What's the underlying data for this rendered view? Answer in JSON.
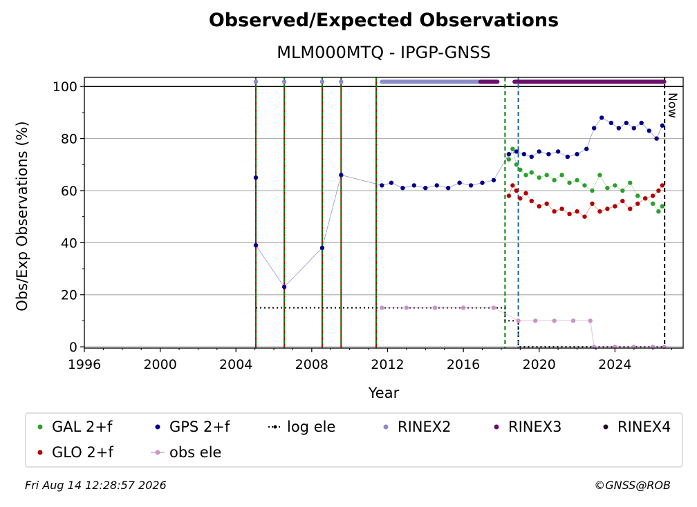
{
  "chart_data": {
    "type": "scatter",
    "title": "Observed/Expected Observations",
    "subtitle": "MLM000MTQ - IPGP-GNSS",
    "xlabel": "Year",
    "ylabel": "Obs/Exp Observations (%)",
    "xlim": [
      1996,
      2027.6
    ],
    "ylim": [
      -0.5,
      103.5
    ],
    "x_ticks": [
      1996,
      2000,
      2004,
      2008,
      2012,
      2016,
      2020,
      2024
    ],
    "y_ticks": [
      0,
      20,
      40,
      60,
      80,
      100
    ],
    "grid": "horizontal",
    "now_label": "Now",
    "now_x": 2026.62,
    "event_lines": [
      {
        "x": 2005.05,
        "color": "#008000",
        "style": "dashed"
      },
      {
        "x": 2006.55,
        "color": "#008000",
        "style": "dashed"
      },
      {
        "x": 2008.55,
        "color": "#008000",
        "style": "dashed"
      },
      {
        "x": 2009.55,
        "color": "#008000",
        "style": "dashed"
      },
      {
        "x": 2011.4,
        "color": "#008000",
        "style": "dashed"
      },
      {
        "x": 2018.2,
        "color": "#008000",
        "style": "dashed"
      },
      {
        "x": 2018.9,
        "color": "#1f5fa8",
        "style": "dashed"
      }
    ],
    "series": [
      {
        "name": "GAL 2+f",
        "color": "#2ca02c",
        "x": [
          2018.4,
          2018.6,
          2018.8,
          2019.0,
          2019.3,
          2019.6,
          2020.0,
          2020.4,
          2020.8,
          2021.2,
          2021.6,
          2022.0,
          2022.4,
          2022.8,
          2023.2,
          2023.6,
          2024.0,
          2024.4,
          2024.8,
          2025.2,
          2025.6,
          2026.0,
          2026.3,
          2026.5
        ],
        "y": [
          72,
          76,
          70,
          68,
          66,
          67,
          65,
          66,
          64,
          66,
          63,
          64,
          62,
          60,
          66,
          61,
          62,
          60,
          63,
          58,
          57,
          55,
          52,
          54
        ]
      },
      {
        "name": "GPS 2+f",
        "color": "#00008b",
        "x": [
          2005.05,
          2005.05,
          2006.55,
          2008.55,
          2009.55,
          2011.7,
          2012.2,
          2012.8,
          2013.4,
          2014.0,
          2014.6,
          2015.2,
          2015.8,
          2016.4,
          2017.0,
          2017.6,
          2018.4,
          2018.8,
          2019.2,
          2019.6,
          2020.0,
          2020.5,
          2021.0,
          2021.5,
          2022.0,
          2022.5,
          2022.9,
          2023.3,
          2023.8,
          2024.2,
          2024.6,
          2025.0,
          2025.4,
          2025.8,
          2026.2,
          2026.5
        ],
        "y": [
          65,
          39,
          23,
          38,
          66,
          62,
          63,
          61,
          62,
          61,
          62,
          61,
          63,
          62,
          63,
          64,
          74,
          75,
          74,
          73,
          75,
          74,
          75,
          73,
          74,
          76,
          84,
          88,
          86,
          84,
          86,
          84,
          86,
          83,
          80,
          85
        ]
      },
      {
        "name": "GLO 2+f",
        "color": "#b30000",
        "x": [
          2018.4,
          2018.6,
          2018.8,
          2019.0,
          2019.3,
          2019.6,
          2020.0,
          2020.4,
          2020.8,
          2021.2,
          2021.6,
          2022.0,
          2022.4,
          2022.8,
          2023.2,
          2023.6,
          2024.0,
          2024.4,
          2024.8,
          2025.2,
          2025.6,
          2026.0,
          2026.3,
          2026.5
        ],
        "y": [
          58,
          62,
          60,
          57,
          59,
          56,
          54,
          55,
          52,
          53,
          51,
          52,
          50,
          55,
          52,
          53,
          54,
          56,
          53,
          55,
          57,
          58,
          60,
          62
        ]
      },
      {
        "name": "obs ele",
        "color": "#c994c7",
        "x": [
          2011.7,
          2013.0,
          2014.5,
          2016.0,
          2017.6,
          2018.9,
          2019.8,
          2020.8,
          2021.8,
          2022.7,
          2022.9,
          2024.0,
          2025.0,
          2026.0,
          2026.6
        ],
        "y": [
          15,
          15,
          15,
          15,
          15,
          10,
          10,
          10,
          10,
          10,
          0,
          0,
          0,
          0,
          0
        ]
      }
    ],
    "log_ele": {
      "name": "log ele",
      "color": "#000000",
      "x": [
        2005.05,
        2018.2,
        2018.2,
        2018.9,
        2018.9,
        2026.62
      ],
      "y": [
        15,
        15,
        10,
        10,
        0,
        0
      ]
    },
    "rinex_bars": [
      {
        "name": "RINEX2",
        "color": "#8c8cc8",
        "start": 2011.7,
        "end": 2016.9,
        "y": 101.8
      },
      {
        "name": "RINEX3",
        "color": "#6b0f6b",
        "start": 2016.9,
        "end": 2017.8,
        "y": 101.8
      },
      {
        "name": "RINEX3",
        "color": "#6b0f6b",
        "start": 2018.7,
        "end": 2026.6,
        "y": 101.8
      }
    ],
    "rinex_points": [
      {
        "x": 2005.05,
        "color": "#8c8cc8"
      },
      {
        "x": 2006.55,
        "color": "#8c8cc8"
      },
      {
        "x": 2008.55,
        "color": "#8c8cc8"
      },
      {
        "x": 2009.55,
        "color": "#8c8cc8"
      }
    ],
    "legend": {
      "placement": "bottom",
      "items": [
        {
          "label": "GAL 2+f",
          "color": "#2ca02c",
          "marker": "dot"
        },
        {
          "label": "GPS 2+f",
          "color": "#00008b",
          "marker": "dot"
        },
        {
          "label": "log ele",
          "color": "#000000",
          "marker": "dotted-line"
        },
        {
          "label": "RINEX2",
          "color": "#8c8cc8",
          "marker": "dot"
        },
        {
          "label": "RINEX3",
          "color": "#6b0f6b",
          "marker": "dot"
        },
        {
          "label": "RINEX4",
          "color": "#2a0a2a",
          "marker": "dot"
        },
        {
          "label": "GLO 2+f",
          "color": "#b30000",
          "marker": "dot"
        },
        {
          "label": "obs ele",
          "color": "#c994c7",
          "marker": "line-dot"
        }
      ]
    }
  },
  "footer": {
    "timestamp": "Fri Aug 14 12:28:57 2026",
    "credit": "©GNSS@ROB"
  }
}
